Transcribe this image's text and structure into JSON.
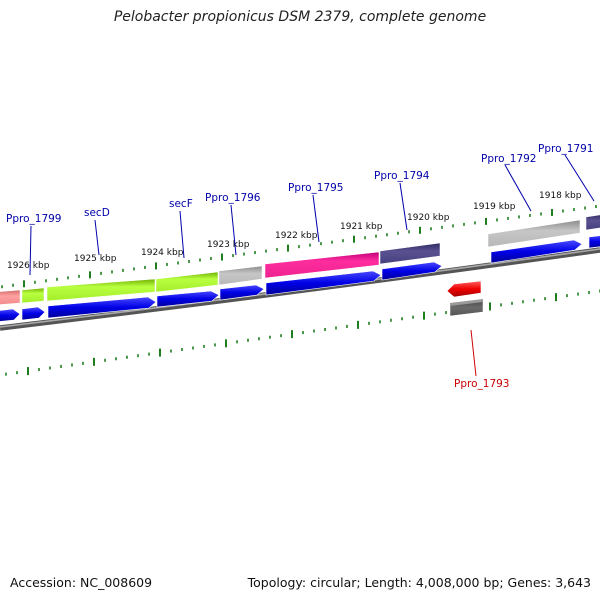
{
  "title": "Pelobacter propionicus DSM 2379, complete genome",
  "footer": {
    "accession": "Accession: NC_008609",
    "summary": "Topology: circular; Length: 4,008,000 bp; Genes: 3,643"
  },
  "colors": {
    "backbone": "#7a7a7a",
    "tick": "#1e7d1e",
    "cds_blue": "#0000e6",
    "gene_label": "#0000aa",
    "reverse_label": "#cc0000",
    "reverse_cds": "#ee0000"
  },
  "kbp_labels": [
    "1926 kbp",
    "1925 kbp",
    "1924 kbp",
    "1923 kbp",
    "1922 kbp",
    "1921 kbp",
    "1920 kbp",
    "1919 kbp",
    "1918 kbp"
  ],
  "gene_labels": [
    {
      "text": "Ppro_1799",
      "strand": "forward"
    },
    {
      "text": "secD",
      "strand": "forward"
    },
    {
      "text": "secF",
      "strand": "forward"
    },
    {
      "text": "Ppro_1796",
      "strand": "forward"
    },
    {
      "text": "Ppro_1795",
      "strand": "forward"
    },
    {
      "text": "Ppro_1794",
      "strand": "forward"
    },
    {
      "text": "Ppro_1792",
      "strand": "forward"
    },
    {
      "text": "Ppro_1791",
      "strand": "forward"
    },
    {
      "text": "Ppro_1793",
      "strand": "reverse"
    }
  ]
}
